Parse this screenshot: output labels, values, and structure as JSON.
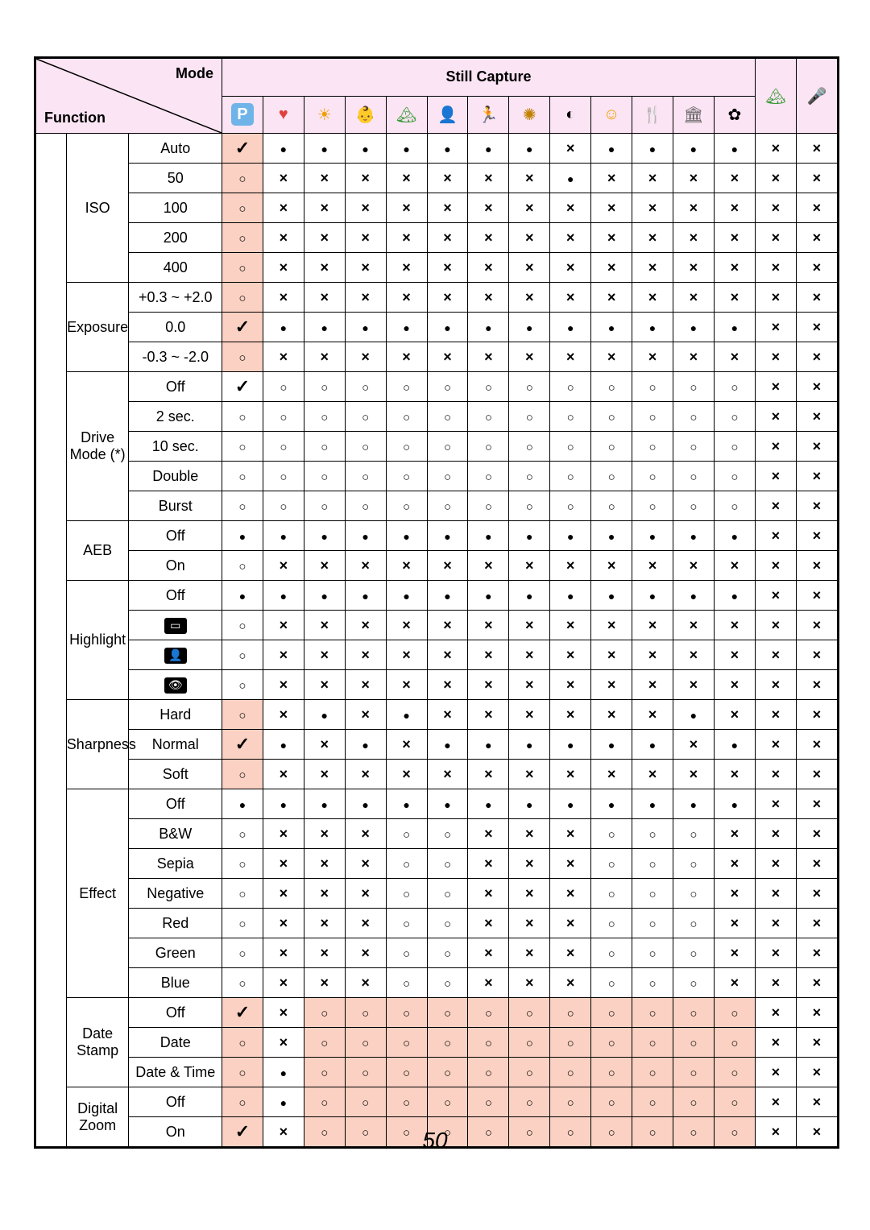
{
  "page_number": "50",
  "header": {
    "still_capture": "Still Capture",
    "mode": "Mode",
    "function": "Function"
  },
  "mode_icons": [
    {
      "name": "program-mode-icon",
      "glyph": "P",
      "bg": "#6fb4e8",
      "fg": "#ffffff",
      "shape": "rounded"
    },
    {
      "name": "couple-mode-icon",
      "glyph": "♥",
      "bg": "#ffffff",
      "fg": "#e04040",
      "shape": "camera"
    },
    {
      "name": "sunset-mode-icon",
      "glyph": "☀",
      "bg": "#ffffff",
      "fg": "#f0a000",
      "shape": "plain"
    },
    {
      "name": "kids-mode-icon",
      "glyph": "👶",
      "bg": "#ffffff",
      "fg": "#f0a000",
      "shape": "plain"
    },
    {
      "name": "landscape-mode-icon",
      "glyph": "🏔",
      "bg": "#ffffff",
      "fg": "#3a9a3a",
      "shape": "plain"
    },
    {
      "name": "portrait-mode-icon",
      "glyph": "👤",
      "bg": "#ffffff",
      "fg": "#f0a000",
      "shape": "plain"
    },
    {
      "name": "sports-mode-icon",
      "glyph": "🏃",
      "bg": "#ffffff",
      "fg": "#404040",
      "shape": "plain"
    },
    {
      "name": "fireworks-mode-icon",
      "glyph": "✺",
      "bg": "#ffffff",
      "fg": "#c08000",
      "shape": "plain"
    },
    {
      "name": "night-mode-icon",
      "glyph": "◐",
      "bg": "#ffffff",
      "fg": "#000000",
      "shape": "plain"
    },
    {
      "name": "baby-mode-icon",
      "glyph": "☺",
      "bg": "#ffffff",
      "fg": "#f0a000",
      "shape": "plain"
    },
    {
      "name": "food-mode-icon",
      "glyph": "🍴",
      "bg": "#ffffff",
      "fg": "#e08000",
      "shape": "plain"
    },
    {
      "name": "building-mode-icon",
      "glyph": "🏛",
      "bg": "#ffffff",
      "fg": "#606060",
      "shape": "plain"
    },
    {
      "name": "text-mode-icon",
      "glyph": "✿",
      "bg": "#ffffff",
      "fg": "#000000",
      "shape": "plain"
    },
    {
      "name": "landscape2-mode-icon",
      "glyph": "🏔",
      "bg": "#ffffff",
      "fg": "#3a9a3a",
      "shape": "plain"
    },
    {
      "name": "voice-mode-icon",
      "glyph": "🎤",
      "bg": "#ffffff",
      "fg": "#2080e0",
      "shape": "plain"
    }
  ],
  "highlight_icons": [
    {
      "name": "highlight-frame-icon",
      "glyph": "▭"
    },
    {
      "name": "highlight-person-icon",
      "glyph": "👤"
    },
    {
      "name": "highlight-eye-icon",
      "glyph": "👁"
    }
  ],
  "colors": {
    "header_bg": "#fbe4f3",
    "pink_cell_bg": "#fad1c2",
    "border": "#000000"
  },
  "groups": [
    {
      "name": "ISO",
      "rows": [
        {
          "label": "Auto",
          "cells": [
            "✓p",
            "●",
            "●",
            "●",
            "●",
            "●",
            "●",
            "●",
            "×",
            "●",
            "●",
            "●",
            "●",
            "×",
            "×"
          ]
        },
        {
          "label": "50",
          "cells": [
            "○p",
            "×",
            "×",
            "×",
            "×",
            "×",
            "×",
            "×",
            "●",
            "×",
            "×",
            "×",
            "×",
            "×",
            "×"
          ]
        },
        {
          "label": "100",
          "cells": [
            "○p",
            "×",
            "×",
            "×",
            "×",
            "×",
            "×",
            "×",
            "×",
            "×",
            "×",
            "×",
            "×",
            "×",
            "×"
          ]
        },
        {
          "label": "200",
          "cells": [
            "○p",
            "×",
            "×",
            "×",
            "×",
            "×",
            "×",
            "×",
            "×",
            "×",
            "×",
            "×",
            "×",
            "×",
            "×"
          ]
        },
        {
          "label": "400",
          "cells": [
            "○p",
            "×",
            "×",
            "×",
            "×",
            "×",
            "×",
            "×",
            "×",
            "×",
            "×",
            "×",
            "×",
            "×",
            "×"
          ]
        }
      ]
    },
    {
      "name": "Exposure",
      "rows": [
        {
          "label": "+0.3 ~ +2.0",
          "cells": [
            "○p",
            "×",
            "×",
            "×",
            "×",
            "×",
            "×",
            "×",
            "×",
            "×",
            "×",
            "×",
            "×",
            "×",
            "×"
          ]
        },
        {
          "label": "0.0",
          "cells": [
            "✓p",
            "●",
            "●",
            "●",
            "●",
            "●",
            "●",
            "●",
            "●",
            "●",
            "●",
            "●",
            "●",
            "×",
            "×"
          ]
        },
        {
          "label": "-0.3 ~ -2.0",
          "cells": [
            "○p",
            "×",
            "×",
            "×",
            "×",
            "×",
            "×",
            "×",
            "×",
            "×",
            "×",
            "×",
            "×",
            "×",
            "×"
          ]
        }
      ]
    },
    {
      "name": "Drive Mode (*)",
      "rows": [
        {
          "label": "Off",
          "cells": [
            "✓",
            "○",
            "○",
            "○",
            "○",
            "○",
            "○",
            "○",
            "○",
            "○",
            "○",
            "○",
            "○",
            "×",
            "×"
          ]
        },
        {
          "label": "2 sec.",
          "cells": [
            "○",
            "○",
            "○",
            "○",
            "○",
            "○",
            "○",
            "○",
            "○",
            "○",
            "○",
            "○",
            "○",
            "×",
            "×"
          ]
        },
        {
          "label": "10 sec.",
          "cells": [
            "○",
            "○",
            "○",
            "○",
            "○",
            "○",
            "○",
            "○",
            "○",
            "○",
            "○",
            "○",
            "○",
            "×",
            "×"
          ]
        },
        {
          "label": "Double",
          "cells": [
            "○",
            "○",
            "○",
            "○",
            "○",
            "○",
            "○",
            "○",
            "○",
            "○",
            "○",
            "○",
            "○",
            "×",
            "×"
          ]
        },
        {
          "label": "Burst",
          "cells": [
            "○",
            "○",
            "○",
            "○",
            "○",
            "○",
            "○",
            "○",
            "○",
            "○",
            "○",
            "○",
            "○",
            "×",
            "×"
          ]
        }
      ]
    },
    {
      "name": "AEB",
      "rows": [
        {
          "label": "Off",
          "cells": [
            "●",
            "●",
            "●",
            "●",
            "●",
            "●",
            "●",
            "●",
            "●",
            "●",
            "●",
            "●",
            "●",
            "×",
            "×"
          ]
        },
        {
          "label": "On",
          "cells": [
            "○",
            "×",
            "×",
            "×",
            "×",
            "×",
            "×",
            "×",
            "×",
            "×",
            "×",
            "×",
            "×",
            "×",
            "×"
          ]
        }
      ]
    },
    {
      "name": "Highlight",
      "rows": [
        {
          "label": "Off",
          "cells": [
            "●",
            "●",
            "●",
            "●",
            "●",
            "●",
            "●",
            "●",
            "●",
            "●",
            "●",
            "●",
            "●",
            "×",
            "×"
          ]
        },
        {
          "label": "@ico0",
          "cells": [
            "○",
            "×",
            "×",
            "×",
            "×",
            "×",
            "×",
            "×",
            "×",
            "×",
            "×",
            "×",
            "×",
            "×",
            "×"
          ]
        },
        {
          "label": "@ico1",
          "cells": [
            "○",
            "×",
            "×",
            "×",
            "×",
            "×",
            "×",
            "×",
            "×",
            "×",
            "×",
            "×",
            "×",
            "×",
            "×"
          ]
        },
        {
          "label": "@ico2",
          "cells": [
            "○",
            "×",
            "×",
            "×",
            "×",
            "×",
            "×",
            "×",
            "×",
            "×",
            "×",
            "×",
            "×",
            "×",
            "×"
          ]
        }
      ]
    },
    {
      "name": "Sharpness",
      "rows": [
        {
          "label": "Hard",
          "cells": [
            "○p",
            "×",
            "●",
            "×",
            "●",
            "×",
            "×",
            "×",
            "×",
            "×",
            "×",
            "●",
            "×",
            "×",
            "×"
          ]
        },
        {
          "label": "Normal",
          "cells": [
            "✓p",
            "●",
            "×",
            "●",
            "×",
            "●",
            "●",
            "●",
            "●",
            "●",
            "●",
            "×",
            "●",
            "×",
            "×"
          ]
        },
        {
          "label": "Soft",
          "cells": [
            "○p",
            "×",
            "×",
            "×",
            "×",
            "×",
            "×",
            "×",
            "×",
            "×",
            "×",
            "×",
            "×",
            "×",
            "×"
          ]
        }
      ]
    },
    {
      "name": "Effect",
      "rows": [
        {
          "label": "Off",
          "cells": [
            "●",
            "●",
            "●",
            "●",
            "●",
            "●",
            "●",
            "●",
            "●",
            "●",
            "●",
            "●",
            "●",
            "×",
            "×"
          ]
        },
        {
          "label": "B&W",
          "cells": [
            "○",
            "×",
            "×",
            "×",
            "○",
            "○",
            "×",
            "×",
            "×",
            "○",
            "○",
            "○",
            "×",
            "×",
            "×"
          ]
        },
        {
          "label": "Sepia",
          "cells": [
            "○",
            "×",
            "×",
            "×",
            "○",
            "○",
            "×",
            "×",
            "×",
            "○",
            "○",
            "○",
            "×",
            "×",
            "×"
          ]
        },
        {
          "label": "Negative",
          "cells": [
            "○",
            "×",
            "×",
            "×",
            "○",
            "○",
            "×",
            "×",
            "×",
            "○",
            "○",
            "○",
            "×",
            "×",
            "×"
          ]
        },
        {
          "label": "Red",
          "cells": [
            "○",
            "×",
            "×",
            "×",
            "○",
            "○",
            "×",
            "×",
            "×",
            "○",
            "○",
            "○",
            "×",
            "×",
            "×"
          ]
        },
        {
          "label": "Green",
          "cells": [
            "○",
            "×",
            "×",
            "×",
            "○",
            "○",
            "×",
            "×",
            "×",
            "○",
            "○",
            "○",
            "×",
            "×",
            "×"
          ]
        },
        {
          "label": "Blue",
          "cells": [
            "○",
            "×",
            "×",
            "×",
            "○",
            "○",
            "×",
            "×",
            "×",
            "○",
            "○",
            "○",
            "×",
            "×",
            "×"
          ]
        }
      ]
    },
    {
      "name": "Date Stamp",
      "rows": [
        {
          "label": "Off",
          "cells": [
            "✓p",
            "×",
            "○p",
            "○p",
            "○p",
            "○p",
            "○p",
            "○p",
            "○p",
            "○p",
            "○p",
            "○p",
            "○p",
            "×",
            "×"
          ]
        },
        {
          "label": "Date",
          "cells": [
            "○p",
            "×",
            "○p",
            "○p",
            "○p",
            "○p",
            "○p",
            "○p",
            "○p",
            "○p",
            "○p",
            "○p",
            "○p",
            "×",
            "×"
          ]
        },
        {
          "label": "Date & Time",
          "cells": [
            "○p",
            "●",
            "○p",
            "○p",
            "○p",
            "○p",
            "○p",
            "○p",
            "○p",
            "○p",
            "○p",
            "○p",
            "○p",
            "×",
            "×"
          ]
        }
      ]
    },
    {
      "name": "Digital Zoom",
      "rows": [
        {
          "label": "Off",
          "cells": [
            "○p",
            "●",
            "○p",
            "○p",
            "○p",
            "○p",
            "○p",
            "○p",
            "○p",
            "○p",
            "○p",
            "○p",
            "○p",
            "×",
            "×"
          ]
        },
        {
          "label": "On",
          "cells": [
            "✓p",
            "×",
            "○p",
            "○p",
            "○p",
            "○p",
            "○p",
            "○p",
            "○p",
            "○p",
            "○p",
            "○p",
            "○p",
            "×",
            "×"
          ]
        }
      ]
    }
  ]
}
